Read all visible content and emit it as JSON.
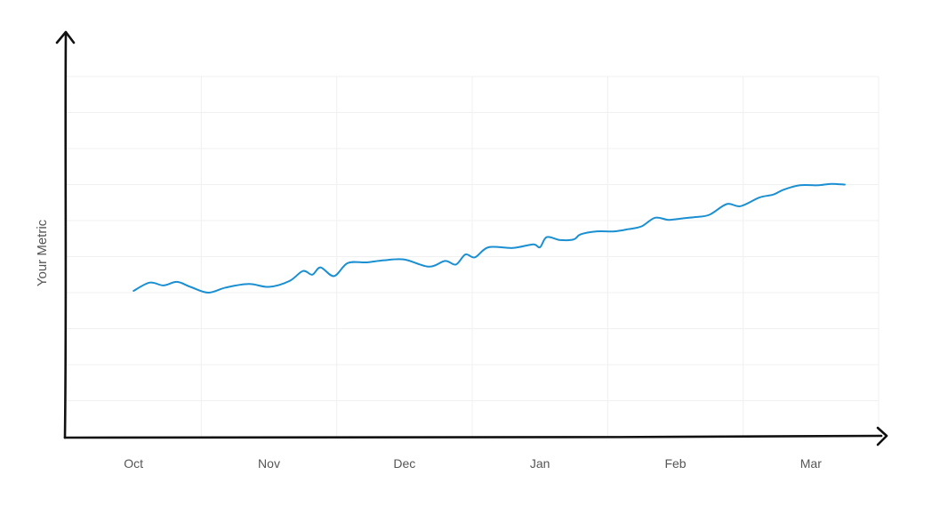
{
  "chart_data": {
    "type": "line",
    "ylabel": "Your Metric",
    "xlabel": "",
    "x_tick_labels": [
      "Oct",
      "Nov",
      "Dec",
      "Jan",
      "Feb",
      "Mar"
    ],
    "y_tick_labels_shown": false,
    "grid": true,
    "series": [
      {
        "color": "#1a8fd1",
        "points": [
          [
            0.0,
            40.5
          ],
          [
            0.12,
            42.8
          ],
          [
            0.22,
            42.0
          ],
          [
            0.32,
            43.0
          ],
          [
            0.42,
            41.6
          ],
          [
            0.55,
            40.0
          ],
          [
            0.68,
            41.4
          ],
          [
            0.85,
            42.4
          ],
          [
            1.0,
            41.6
          ],
          [
            1.15,
            43.2
          ],
          [
            1.25,
            46.0
          ],
          [
            1.32,
            45.0
          ],
          [
            1.38,
            47.0
          ],
          [
            1.48,
            44.6
          ],
          [
            1.58,
            48.2
          ],
          [
            1.72,
            48.4
          ],
          [
            1.85,
            49.0
          ],
          [
            2.0,
            49.2
          ],
          [
            2.18,
            47.2
          ],
          [
            2.3,
            48.8
          ],
          [
            2.38,
            47.8
          ],
          [
            2.45,
            50.6
          ],
          [
            2.52,
            49.8
          ],
          [
            2.62,
            52.6
          ],
          [
            2.8,
            52.4
          ],
          [
            2.95,
            53.4
          ],
          [
            3.0,
            52.6
          ],
          [
            3.05,
            55.4
          ],
          [
            3.15,
            54.6
          ],
          [
            3.25,
            54.8
          ],
          [
            3.3,
            56.2
          ],
          [
            3.42,
            57.0
          ],
          [
            3.55,
            57.0
          ],
          [
            3.65,
            57.6
          ],
          [
            3.75,
            58.4
          ],
          [
            3.85,
            60.8
          ],
          [
            3.95,
            60.2
          ],
          [
            4.05,
            60.6
          ],
          [
            4.15,
            61.0
          ],
          [
            4.25,
            61.6
          ],
          [
            4.38,
            64.6
          ],
          [
            4.48,
            64.0
          ],
          [
            4.62,
            66.4
          ],
          [
            4.72,
            67.2
          ],
          [
            4.8,
            68.6
          ],
          [
            4.92,
            69.8
          ],
          [
            5.05,
            69.8
          ],
          [
            5.15,
            70.2
          ],
          [
            5.25,
            70.0
          ]
        ]
      }
    ]
  }
}
